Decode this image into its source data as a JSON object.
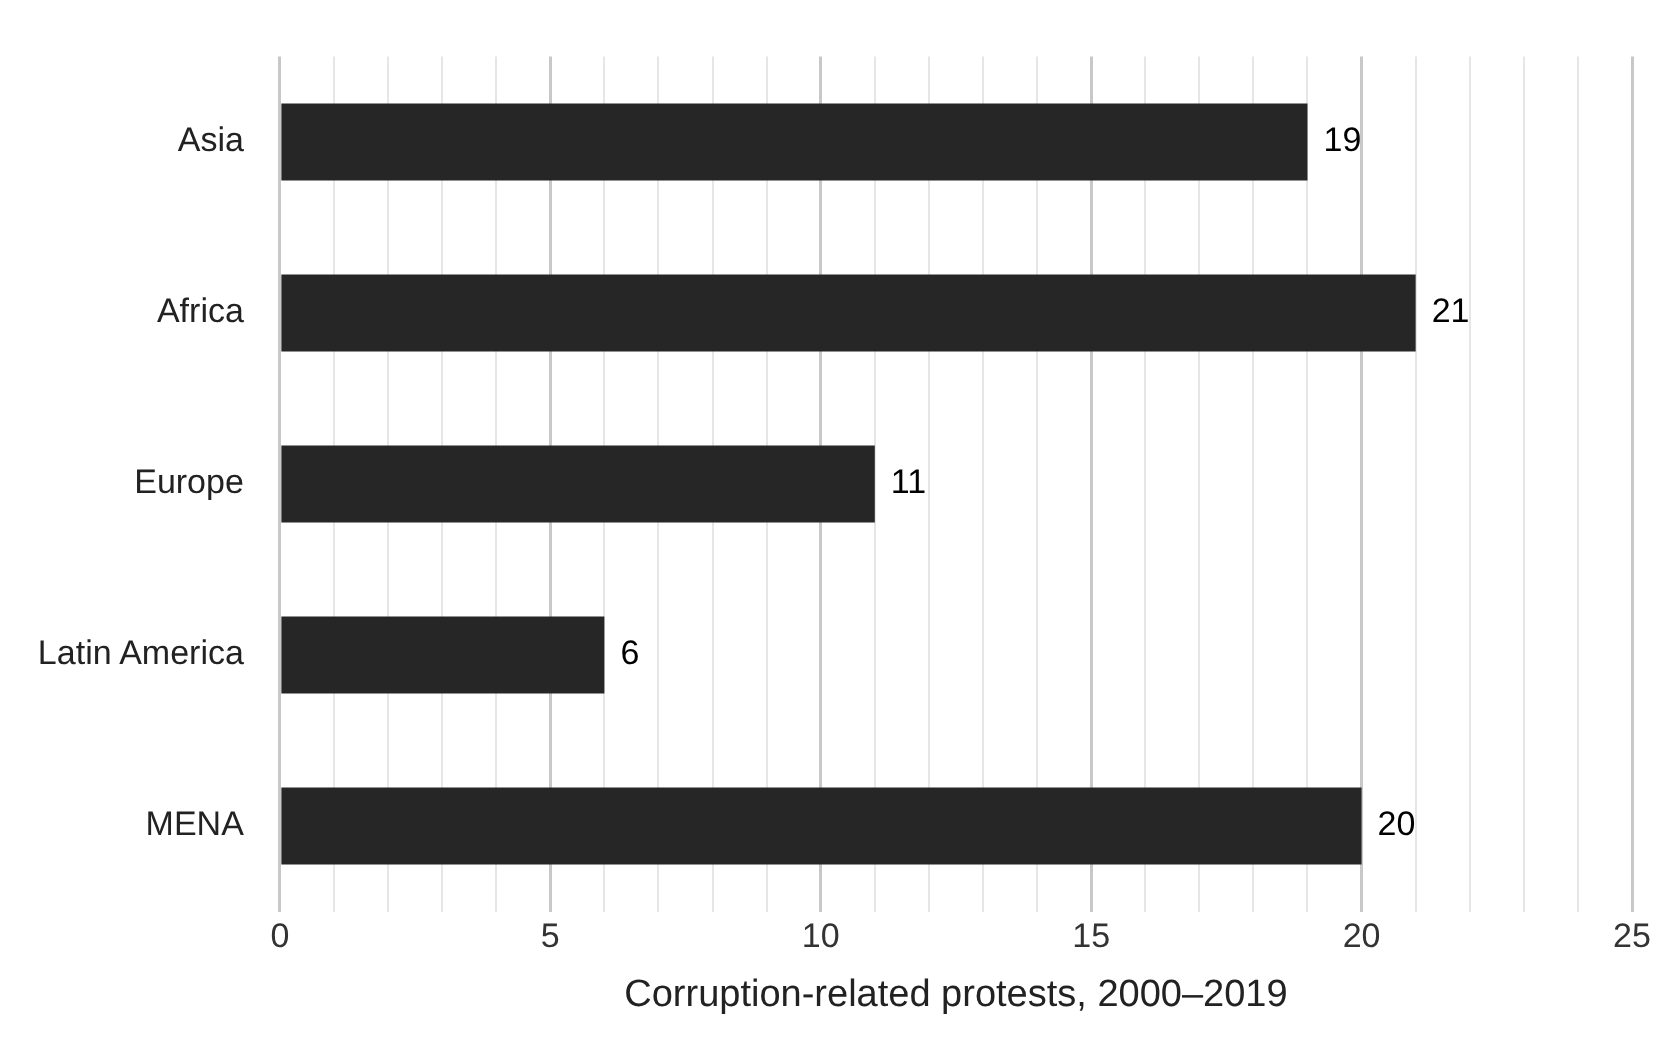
{
  "chart_data": {
    "type": "bar",
    "orientation": "horizontal",
    "xlabel": "Corruption-related protests, 2000–2019",
    "categories": [
      "Asia",
      "Africa",
      "Europe",
      "Latin America",
      "MENA"
    ],
    "values": [
      19,
      21,
      11,
      6,
      20
    ],
    "color": "#262626",
    "data_labels": true,
    "xlim": [
      0,
      25
    ],
    "xticks": [
      0,
      {
        "value": 1,
        "label": null
      },
      {
        "value": 2,
        "label": null
      },
      {
        "value": 3,
        "label": null
      },
      {
        "value": 4,
        "label": null
      },
      5,
      {
        "value": 6,
        "label": null
      },
      {
        "value": 7,
        "label": null
      },
      {
        "value": 8,
        "label": null
      },
      {
        "value": 9,
        "label": null
      },
      10,
      {
        "value": 11,
        "label": null
      },
      {
        "value": 12,
        "label": null
      },
      {
        "value": 13,
        "label": null
      },
      {
        "value": 14,
        "label": null
      },
      15,
      {
        "value": 16,
        "label": null
      },
      {
        "value": 17,
        "label": null
      },
      {
        "value": 18,
        "label": null
      },
      {
        "value": 19,
        "label": null
      },
      20,
      {
        "value": 21,
        "label": null
      },
      {
        "value": 22,
        "label": null
      },
      {
        "value": 23,
        "label": null
      },
      {
        "value": 24,
        "label": null
      },
      25
    ],
    "grid": "x",
    "legend": false
  }
}
